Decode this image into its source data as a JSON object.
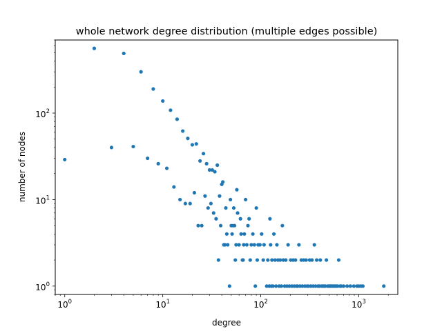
{
  "chart_data": {
    "type": "scatter",
    "title": "whole network degree distribution (multiple edges possible)",
    "xlabel": "degree",
    "ylabel": "number of nodes",
    "xscale": "log",
    "yscale": "log",
    "xlim": [
      0.8,
      2500
    ],
    "ylim": [
      0.8,
      700
    ],
    "grid": false,
    "color": "#1f77b4",
    "x_ticks": [
      {
        "value": 1,
        "base": "10",
        "exp": "0"
      },
      {
        "value": 10,
        "base": "10",
        "exp": "1"
      },
      {
        "value": 100,
        "base": "10",
        "exp": "2"
      },
      {
        "value": 1000,
        "base": "10",
        "exp": "3"
      }
    ],
    "y_ticks": [
      {
        "value": 1,
        "base": "10",
        "exp": "0"
      },
      {
        "value": 10,
        "base": "10",
        "exp": "1"
      },
      {
        "value": 100,
        "base": "10",
        "exp": "2"
      }
    ],
    "points": [
      [
        1,
        29
      ],
      [
        2,
        560
      ],
      [
        3,
        40
      ],
      [
        4,
        490
      ],
      [
        5,
        41
      ],
      [
        6,
        300
      ],
      [
        7,
        30
      ],
      [
        8,
        190
      ],
      [
        9,
        26
      ],
      [
        10,
        138
      ],
      [
        11,
        23
      ],
      [
        12,
        108
      ],
      [
        13,
        14
      ],
      [
        14,
        85
      ],
      [
        15,
        10
      ],
      [
        16,
        62
      ],
      [
        17,
        9
      ],
      [
        18,
        51
      ],
      [
        19,
        9
      ],
      [
        20,
        43
      ],
      [
        21,
        12
      ],
      [
        22,
        44
      ],
      [
        23,
        5
      ],
      [
        24,
        28
      ],
      [
        25,
        5
      ],
      [
        26,
        34
      ],
      [
        27,
        11
      ],
      [
        28,
        26
      ],
      [
        29,
        8
      ],
      [
        30,
        22
      ],
      [
        31,
        9
      ],
      [
        32,
        22
      ],
      [
        33,
        7
      ],
      [
        34,
        21
      ],
      [
        35,
        6
      ],
      [
        36,
        25
      ],
      [
        37,
        2
      ],
      [
        38,
        11
      ],
      [
        39,
        5
      ],
      [
        40,
        15
      ],
      [
        41,
        16
      ],
      [
        42,
        3
      ],
      [
        43,
        3
      ],
      [
        44,
        8
      ],
      [
        45,
        4
      ],
      [
        46,
        3
      ],
      [
        48,
        1
      ],
      [
        49,
        10
      ],
      [
        50,
        5
      ],
      [
        51,
        4
      ],
      [
        52,
        5
      ],
      [
        53,
        8
      ],
      [
        54,
        5
      ],
      [
        55,
        2
      ],
      [
        56,
        3
      ],
      [
        57,
        13
      ],
      [
        58,
        7
      ],
      [
        60,
        3
      ],
      [
        62,
        6
      ],
      [
        63,
        4
      ],
      [
        65,
        2
      ],
      [
        66,
        2
      ],
      [
        67,
        3
      ],
      [
        68,
        4
      ],
      [
        70,
        10
      ],
      [
        72,
        3
      ],
      [
        74,
        5
      ],
      [
        76,
        6
      ],
      [
        78,
        2
      ],
      [
        80,
        3
      ],
      [
        83,
        4
      ],
      [
        86,
        3
      ],
      [
        88,
        1
      ],
      [
        90,
        8
      ],
      [
        92,
        2
      ],
      [
        94,
        3
      ],
      [
        98,
        3
      ],
      [
        102,
        4
      ],
      [
        106,
        2
      ],
      [
        108,
        3
      ],
      [
        115,
        1
      ],
      [
        118,
        2
      ],
      [
        122,
        1
      ],
      [
        124,
        6
      ],
      [
        126,
        3
      ],
      [
        128,
        1
      ],
      [
        130,
        2
      ],
      [
        133,
        1
      ],
      [
        136,
        4
      ],
      [
        140,
        2
      ],
      [
        143,
        1
      ],
      [
        146,
        3
      ],
      [
        150,
        2
      ],
      [
        154,
        1
      ],
      [
        158,
        2
      ],
      [
        162,
        1
      ],
      [
        166,
        5
      ],
      [
        170,
        2
      ],
      [
        175,
        1
      ],
      [
        180,
        2
      ],
      [
        185,
        1
      ],
      [
        190,
        3
      ],
      [
        196,
        1
      ],
      [
        202,
        2
      ],
      [
        208,
        1
      ],
      [
        214,
        2
      ],
      [
        220,
        1
      ],
      [
        226,
        2
      ],
      [
        232,
        1
      ],
      [
        238,
        1
      ],
      [
        245,
        3
      ],
      [
        252,
        1
      ],
      [
        259,
        2
      ],
      [
        266,
        1
      ],
      [
        274,
        2
      ],
      [
        282,
        1
      ],
      [
        290,
        2
      ],
      [
        298,
        1
      ],
      [
        306,
        1
      ],
      [
        315,
        2
      ],
      [
        324,
        1
      ],
      [
        333,
        2
      ],
      [
        342,
        1
      ],
      [
        352,
        3
      ],
      [
        362,
        1
      ],
      [
        372,
        2
      ],
      [
        383,
        1
      ],
      [
        394,
        1
      ],
      [
        405,
        2
      ],
      [
        417,
        1
      ],
      [
        429,
        1
      ],
      [
        441,
        1
      ],
      [
        454,
        1
      ],
      [
        467,
        2
      ],
      [
        481,
        1
      ],
      [
        495,
        1
      ],
      [
        510,
        1
      ],
      [
        525,
        1
      ],
      [
        540,
        1
      ],
      [
        556,
        1
      ],
      [
        572,
        1
      ],
      [
        589,
        1
      ],
      [
        606,
        1
      ],
      [
        624,
        2
      ],
      [
        642,
        1
      ],
      [
        661,
        1
      ],
      [
        700,
        1
      ],
      [
        760,
        1
      ],
      [
        820,
        1
      ],
      [
        890,
        1
      ],
      [
        960,
        1
      ],
      [
        1000,
        1
      ],
      [
        1050,
        1
      ],
      [
        1100,
        1
      ],
      [
        1800,
        1
      ]
    ]
  }
}
